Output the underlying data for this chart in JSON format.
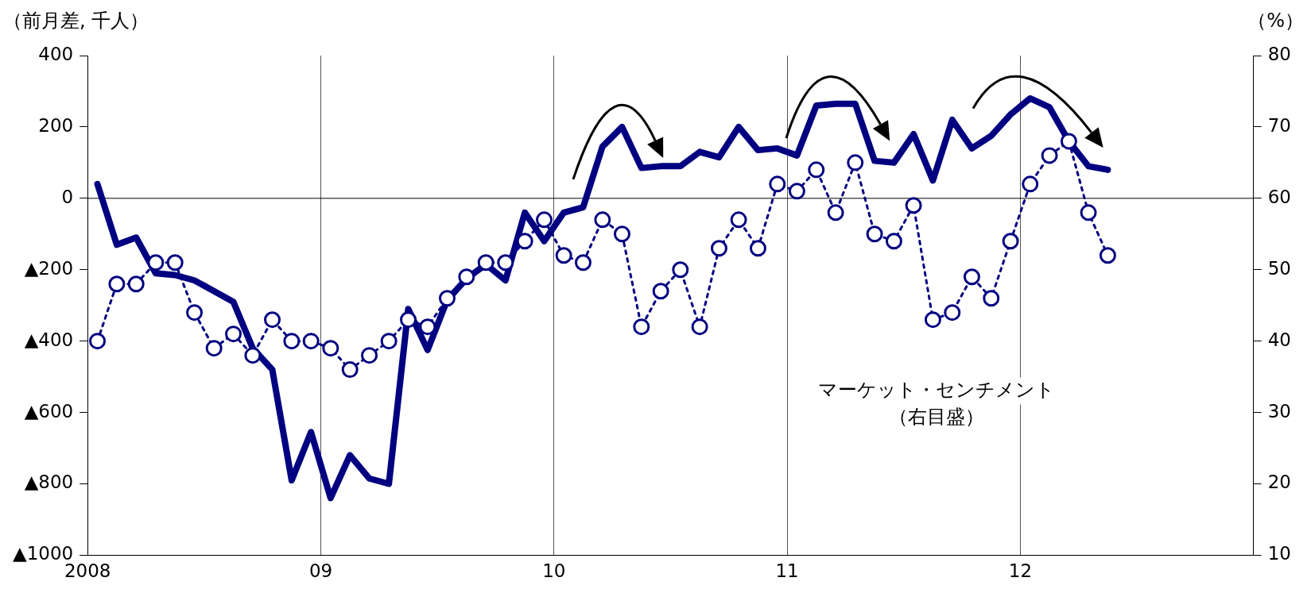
{
  "chart_data": {
    "type": "line",
    "ylabel": "（前月差, 千人）",
    "y2label": "（%）",
    "annotations": [
      "マーケット・センチメント",
      "（右目盛）"
    ],
    "x": [
      2008.042,
      2008.125,
      2008.208,
      2008.292,
      2008.375,
      2008.458,
      2008.542,
      2008.625,
      2008.708,
      2008.792,
      2008.875,
      2008.958,
      2009.042,
      2009.125,
      2009.208,
      2009.292,
      2009.375,
      2009.458,
      2009.542,
      2009.625,
      2009.708,
      2009.792,
      2009.875,
      2009.958,
      2010.042,
      2010.125,
      2010.208,
      2010.292,
      2010.375,
      2010.458,
      2010.542,
      2010.625,
      2010.708,
      2010.792,
      2010.875,
      2010.958,
      2011.042,
      2011.125,
      2011.208,
      2011.292,
      2011.375,
      2011.458,
      2011.542,
      2011.625,
      2011.708,
      2011.792,
      2011.875,
      2011.958,
      2012.042,
      2012.125,
      2012.208,
      2012.292,
      2012.375
    ],
    "series": [
      {
        "color": "#000080",
        "line_style": "solid",
        "marker": "none",
        "values": [
          40,
          -130,
          -110,
          -210,
          -215,
          -230,
          -260,
          -290,
          -420,
          -480,
          -790,
          -655,
          -840,
          -720,
          -785,
          -800,
          -310,
          -425,
          -285,
          -225,
          -185,
          -230,
          -40,
          -120,
          -40,
          -25,
          145,
          200,
          85,
          90,
          90,
          130,
          115,
          200,
          135,
          140,
          120,
          260,
          265,
          265,
          105,
          100,
          180,
          50,
          220,
          140,
          175,
          235,
          280,
          255,
          160,
          90,
          80
        ]
      },
      {
        "color": "#000080",
        "axis": "y2",
        "line_style": "dotted",
        "marker": "circle",
        "values": [
          40,
          48,
          48,
          51,
          51,
          44,
          39,
          41,
          38,
          43,
          40,
          40,
          39,
          36,
          38,
          40,
          43,
          42,
          46,
          49,
          51,
          51,
          54,
          57,
          52,
          51,
          57,
          55,
          42,
          47,
          50,
          42,
          53,
          57,
          53,
          62,
          61,
          64,
          58,
          65,
          55,
          54,
          59,
          43,
          44,
          49,
          46,
          54,
          62,
          66,
          68,
          58,
          52
        ]
      }
    ],
    "xlim": [
      2008,
      2013
    ],
    "xticks": [
      {
        "value": 2008,
        "label": "2008"
      },
      {
        "value": 2009,
        "label": "09"
      },
      {
        "value": 2010,
        "label": "10"
      },
      {
        "value": 2011,
        "label": "11"
      },
      {
        "value": 2012,
        "label": "12"
      }
    ],
    "ylim": [
      -1000,
      400
    ],
    "yticks": [
      {
        "value": -1000,
        "label": "▲1000"
      },
      {
        "value": -800,
        "label": "▲800"
      },
      {
        "value": -600,
        "label": "▲600"
      },
      {
        "value": -400,
        "label": "▲400"
      },
      {
        "value": -200,
        "label": "▲200"
      },
      0,
      200,
      400
    ],
    "y2lim": [
      10,
      80
    ],
    "y2ticks": [
      10,
      20,
      30,
      40,
      50,
      60,
      70,
      80
    ],
    "ref_lines": [
      {
        "axis": "y",
        "value": 0,
        "color": "#000000"
      }
    ],
    "grid": "x",
    "legend": false
  }
}
